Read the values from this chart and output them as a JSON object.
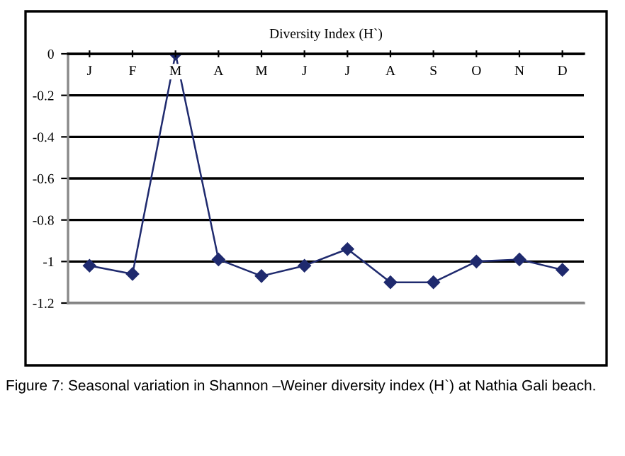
{
  "chart_data": {
    "type": "line",
    "title": "Diversity Index (H`)",
    "categories": [
      "J",
      "F",
      "M",
      "A",
      "M",
      "J",
      "J",
      "A",
      "S",
      "O",
      "N",
      "D"
    ],
    "series": [
      {
        "color": "#1f2a6e",
        "values": [
          -1.02,
          -1.06,
          0,
          -0.99,
          -1.07,
          -1.02,
          -0.94,
          -1.1,
          -1.1,
          -1.0,
          -0.99,
          -1.04
        ]
      }
    ],
    "ylim": [
      -1.2,
      0
    ],
    "yticks": [
      0,
      -0.2,
      -0.4,
      -0.6,
      -0.8,
      -1,
      -1.2
    ],
    "grid": "y",
    "marker": "diamond",
    "line_style": "solid",
    "annotations": [
      "Figure 7: Seasonal variation in Shannon –Weiner diversity index (H`) at Nathia Gali beach."
    ]
  }
}
